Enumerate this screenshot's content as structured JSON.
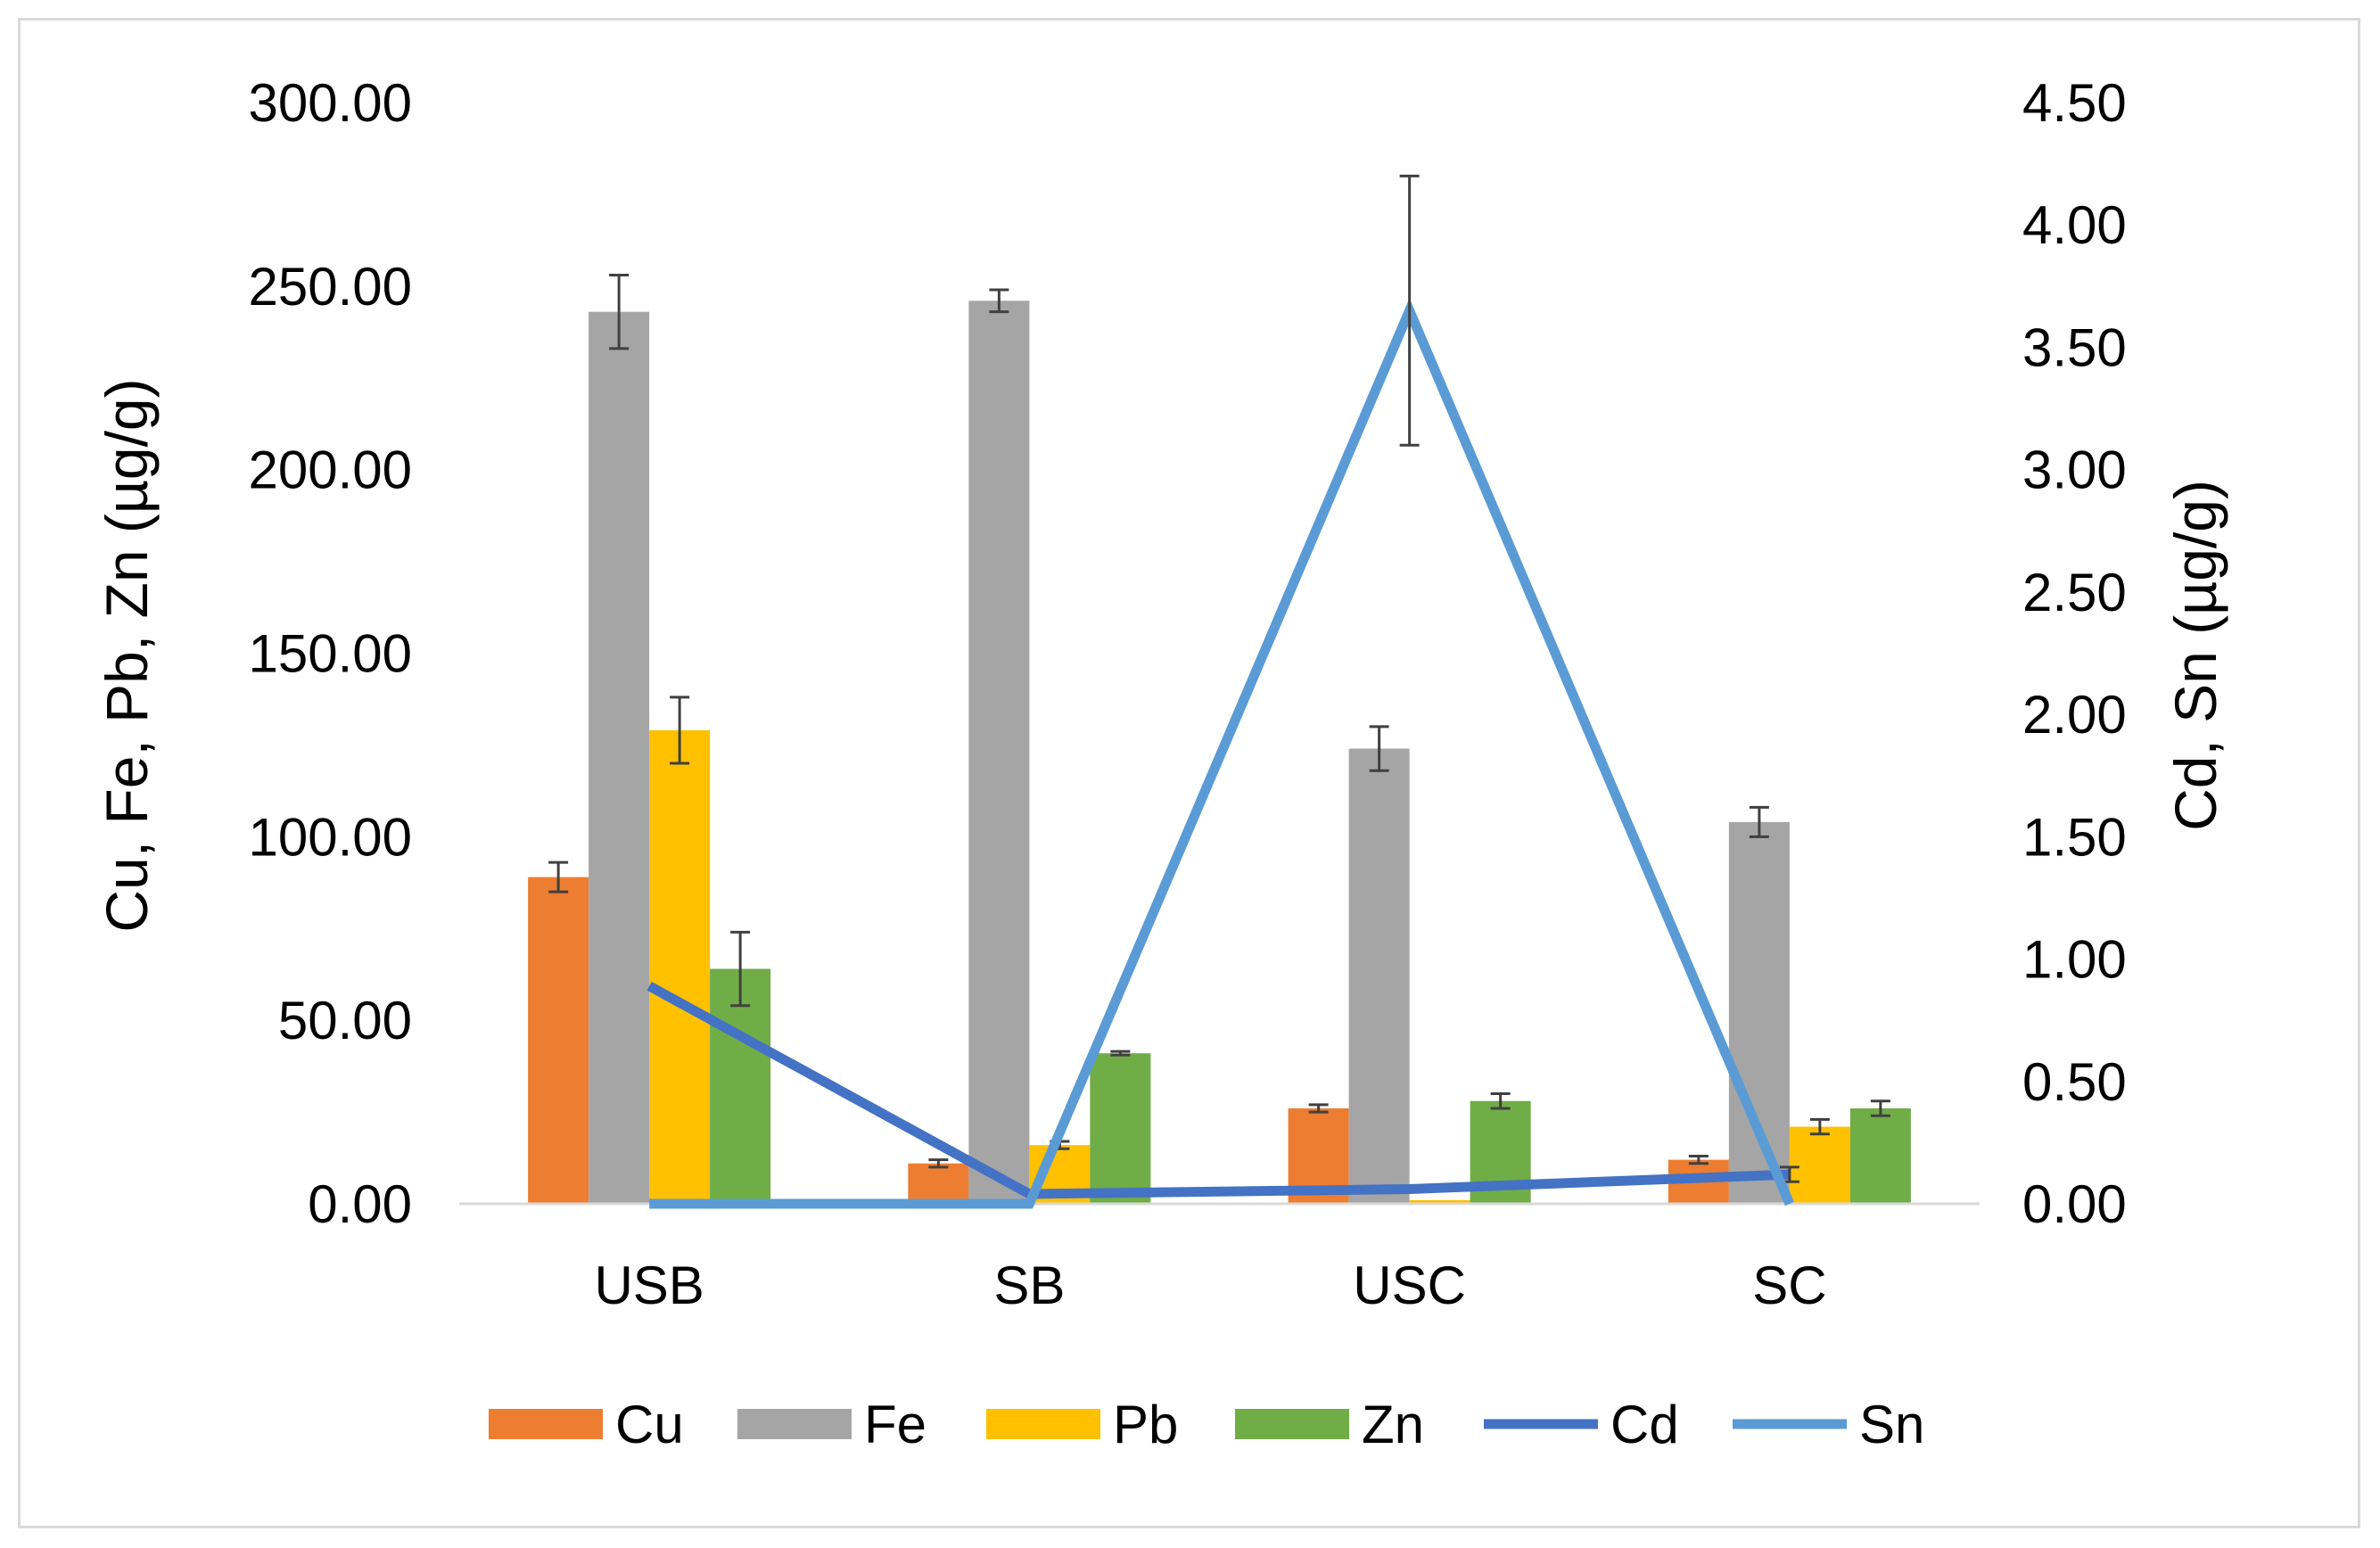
{
  "chart_data": {
    "type": "bar",
    "title": "",
    "categories": [
      "USB",
      "SB",
      "USC",
      "SC"
    ],
    "ylabel": "Cu, Fe, Pb, Zn (µg/g)",
    "y2label": "Cd, Sn (µg/g)",
    "ylim": [
      0,
      300
    ],
    "y2lim": [
      0,
      4.5
    ],
    "yticks": [
      "0.00",
      "50.00",
      "100.00",
      "150.00",
      "200.00",
      "250.00",
      "300.00"
    ],
    "y2ticks": [
      "0.00",
      "0.50",
      "1.00",
      "1.50",
      "2.00",
      "2.50",
      "3.00",
      "3.50",
      "4.00",
      "4.50"
    ],
    "grid": false,
    "legend_position": "bottom",
    "bar_series": [
      {
        "name": "Cu",
        "color": "#ED7D31",
        "values": [
          89,
          11,
          26,
          12
        ],
        "errors": [
          4,
          1,
          1,
          1
        ]
      },
      {
        "name": "Fe",
        "color": "#A5A5A5",
        "values": [
          243,
          246,
          124,
          104
        ],
        "errors": [
          10,
          3,
          6,
          4
        ]
      },
      {
        "name": "Pb",
        "color": "#FFC000",
        "values": [
          129,
          16,
          1,
          21
        ],
        "errors": [
          9,
          1,
          0,
          2
        ]
      },
      {
        "name": "Zn",
        "color": "#70AD47",
        "values": [
          64,
          41,
          28,
          26
        ],
        "errors": [
          10,
          0.5,
          2,
          2
        ]
      }
    ],
    "line_series": [
      {
        "name": "Cd",
        "color": "#4472C4",
        "axis": "secondary",
        "values": [
          0.89,
          0.04,
          0.06,
          0.12
        ],
        "errors": [
          0,
          0,
          0,
          0.03
        ]
      },
      {
        "name": "Sn",
        "color": "#5B9BD5",
        "axis": "secondary",
        "values": [
          0.0,
          0.0,
          3.65,
          0.0
        ],
        "errors": [
          0,
          0,
          0.55,
          0
        ]
      }
    ]
  }
}
